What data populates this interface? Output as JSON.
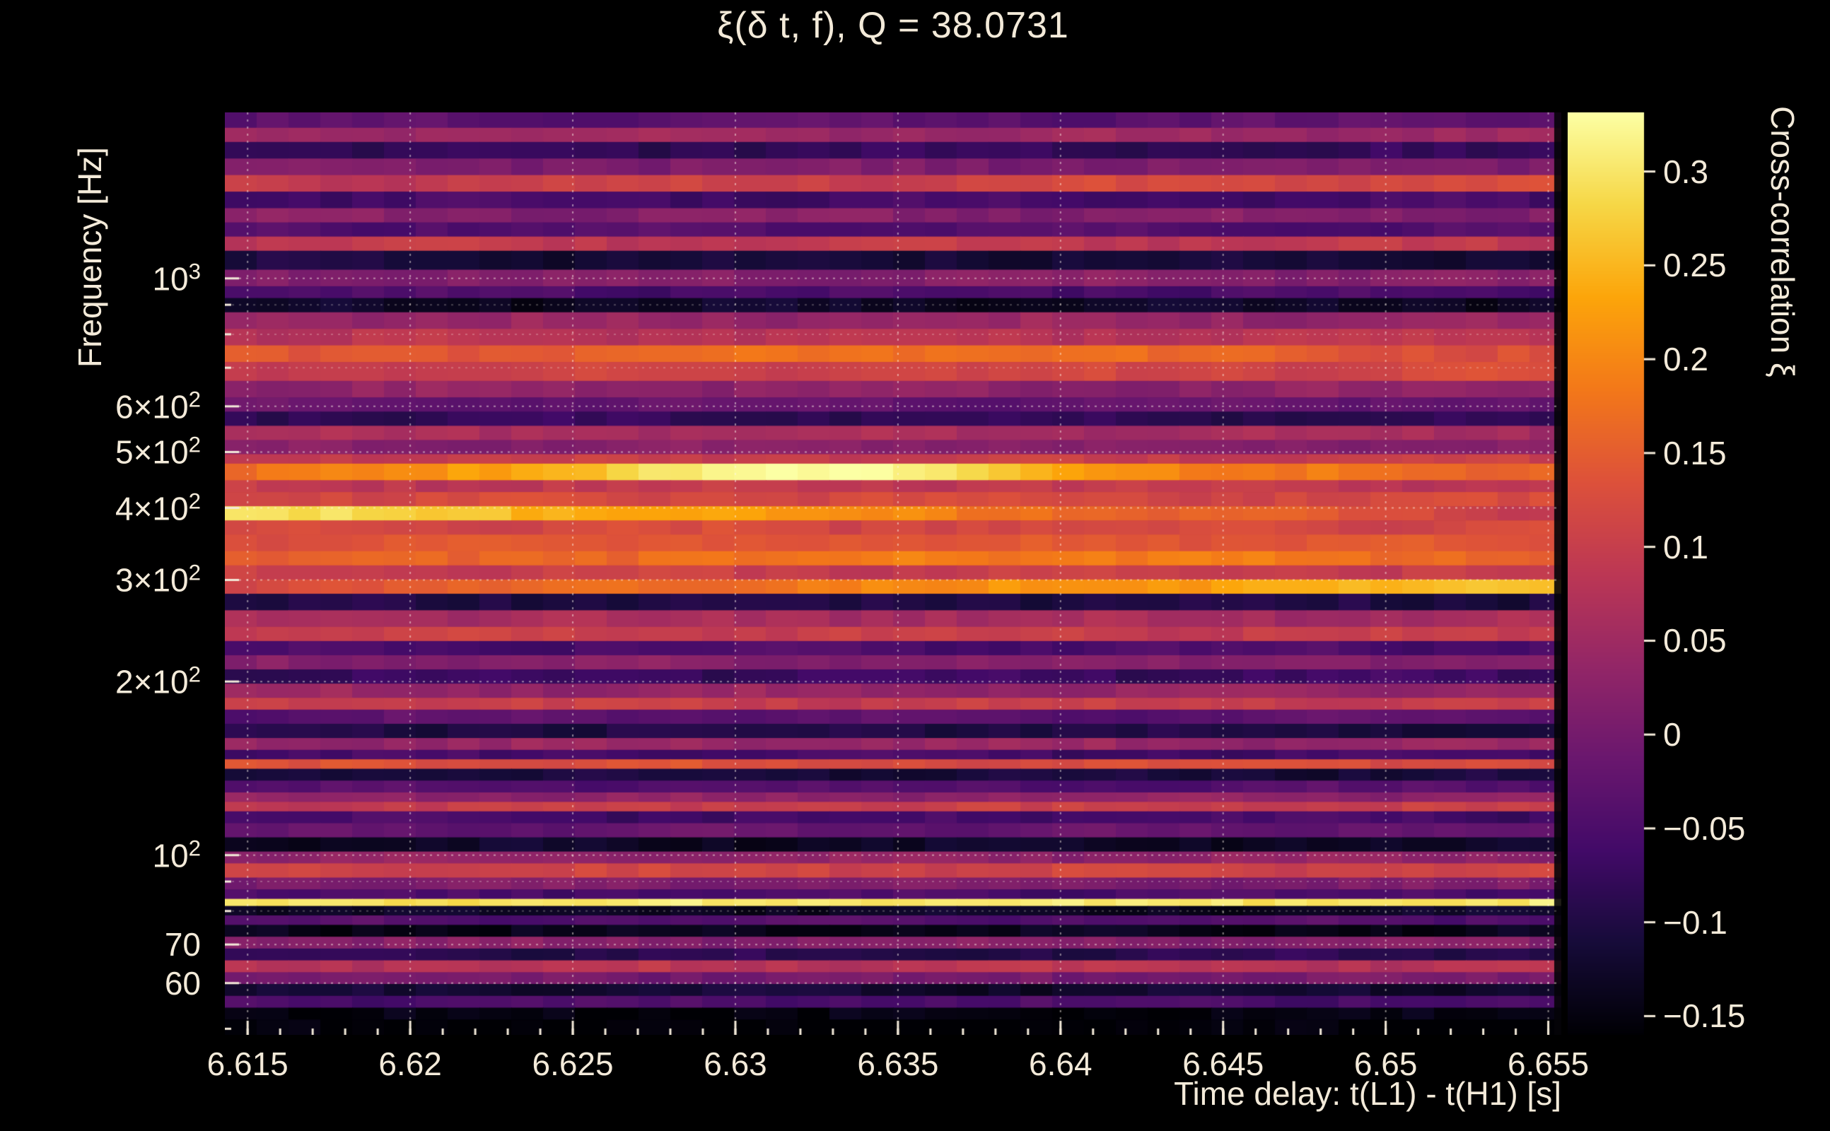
{
  "colors": {
    "background": "#000000",
    "text": "#f3ead9",
    "grid": "#fff8eb",
    "colormap": "inferno"
  },
  "chart_data": {
    "type": "heatmap",
    "title": "ξ(δ t, f), Q = 38.0731",
    "xlabel": "Time delay: t(L1) - t(H1) [s]",
    "ylabel": "Frequency [Hz]",
    "zlabel": "Cross-correlation ξ",
    "x_scale": "linear",
    "y_scale": "log",
    "grid": true,
    "legend": "colorbar-right",
    "x_range": [
      6.6143,
      6.6554
    ],
    "y_range_hz": [
      48.8,
      1940
    ],
    "z_range": [
      -0.16,
      0.3315
    ],
    "n_time_bins": 42,
    "x_ticks": [
      {
        "v": 6.615,
        "label": "6.615"
      },
      {
        "v": 6.62,
        "label": "6.62"
      },
      {
        "v": 6.625,
        "label": "6.625"
      },
      {
        "v": 6.63,
        "label": "6.63"
      },
      {
        "v": 6.635,
        "label": "6.635"
      },
      {
        "v": 6.64,
        "label": "6.64"
      },
      {
        "v": 6.645,
        "label": "6.645"
      },
      {
        "v": 6.65,
        "label": "6.65"
      },
      {
        "v": 6.655,
        "label": "6.655"
      }
    ],
    "x_minor_tick_step": 0.001,
    "y_ticks": [
      {
        "f": 1000,
        "m": "10",
        "e": "3"
      },
      {
        "f": 600,
        "m": "6×10",
        "e": "2"
      },
      {
        "f": 500,
        "m": "5×10",
        "e": "2"
      },
      {
        "f": 400,
        "m": "4×10",
        "e": "2"
      },
      {
        "f": 300,
        "m": "3×10",
        "e": "2"
      },
      {
        "f": 200,
        "m": "2×10",
        "e": "2"
      },
      {
        "f": 100,
        "m": "10",
        "e": "2"
      },
      {
        "f": 70,
        "m": "70",
        "e": ""
      },
      {
        "f": 60,
        "m": "60",
        "e": ""
      }
    ],
    "y_minor_gridlines": [
      900,
      800,
      700,
      90,
      80
    ],
    "y_minor_ticks": [
      900,
      800,
      700,
      90,
      80,
      50
    ],
    "z_ticks": [
      {
        "v": 0.3,
        "label": "0.3"
      },
      {
        "v": 0.25,
        "label": "0.25"
      },
      {
        "v": 0.2,
        "label": "0.2"
      },
      {
        "v": 0.15,
        "label": "0.15"
      },
      {
        "v": 0.1,
        "label": "0.1"
      },
      {
        "v": 0.05,
        "label": "0.05"
      },
      {
        "v": 0,
        "label": "0"
      },
      {
        "v": -0.05,
        "label": "−0.05"
      },
      {
        "v": -0.1,
        "label": "−0.1"
      },
      {
        "v": -0.15,
        "label": "−0.15"
      }
    ],
    "bands_note": "Horizontal frequency bands, top-to-bottom. Format: [rel_height, xi_left, xi_right?, peak_center_frac?, peak_amp?, peak_width_frac?]",
    "bands": [
      [
        13,
        -0.03
      ],
      [
        12,
        0.05
      ],
      [
        14,
        -0.08
      ],
      [
        14,
        0.01
      ],
      [
        14,
        0.09,
        0.13
      ],
      [
        14,
        -0.06
      ],
      [
        12,
        0.02
      ],
      [
        12,
        -0.04
      ],
      [
        12,
        0.09
      ],
      [
        16,
        -0.11
      ],
      [
        14,
        0.02
      ],
      [
        10,
        -0.05
      ],
      [
        12,
        -0.13
      ],
      [
        14,
        0.04
      ],
      [
        14,
        0.08
      ],
      [
        14,
        0.13,
        0.13,
        0.5,
        0.05,
        0.3
      ],
      [
        16,
        0.1,
        0.12
      ],
      [
        14,
        0.03
      ],
      [
        12,
        -0.02
      ],
      [
        12,
        -0.08
      ],
      [
        12,
        0.06
      ],
      [
        12,
        0.02
      ],
      [
        8,
        0.1
      ],
      [
        14,
        0.17,
        0.17,
        0.42,
        0.16,
        0.22
      ],
      [
        10,
        0.09
      ],
      [
        12,
        0.12
      ],
      [
        12,
        0.3,
        0.1
      ],
      [
        12,
        0.12
      ],
      [
        14,
        0.14
      ],
      [
        12,
        0.15,
        0.15,
        0.6,
        0.04,
        0.35
      ],
      [
        12,
        0.1
      ],
      [
        12,
        0.12,
        0.27
      ],
      [
        14,
        -0.1
      ],
      [
        14,
        0.06
      ],
      [
        12,
        0.1
      ],
      [
        12,
        -0.05
      ],
      [
        12,
        0.02
      ],
      [
        12,
        -0.07
      ],
      [
        12,
        0.04
      ],
      [
        10,
        0.1
      ],
      [
        12,
        -0.03
      ],
      [
        12,
        -0.1
      ],
      [
        10,
        0.04
      ],
      [
        8,
        -0.06
      ],
      [
        8,
        0.13
      ],
      [
        10,
        -0.11
      ],
      [
        10,
        -0.04
      ],
      [
        8,
        0.03
      ],
      [
        8,
        0.1
      ],
      [
        10,
        -0.06
      ],
      [
        12,
        -0.02
      ],
      [
        12,
        -0.13
      ],
      [
        10,
        0.03
      ],
      [
        12,
        0.11
      ],
      [
        10,
        0.01
      ],
      [
        8,
        -0.05
      ],
      [
        6,
        0.3
      ],
      [
        8,
        -0.13
      ],
      [
        8,
        -0.04
      ],
      [
        10,
        -0.14
      ],
      [
        10,
        0.02
      ],
      [
        10,
        -0.09
      ],
      [
        10,
        0.08
      ],
      [
        10,
        0.0
      ],
      [
        10,
        -0.12
      ],
      [
        10,
        -0.05
      ],
      [
        10,
        -0.15
      ],
      [
        13,
        -0.16
      ]
    ]
  }
}
